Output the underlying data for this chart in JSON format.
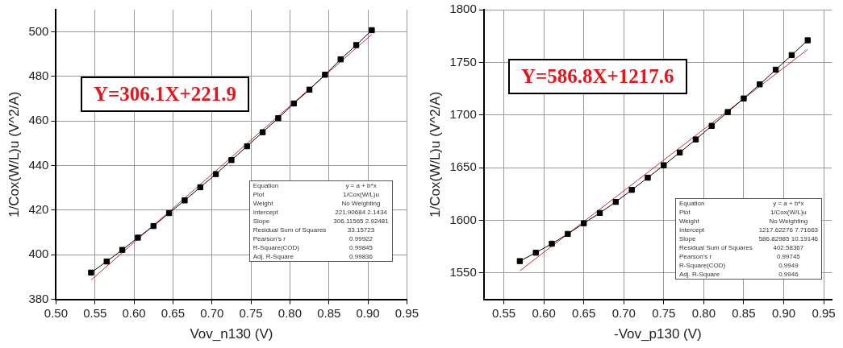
{
  "chart_data": [
    {
      "type": "line",
      "xlabel": "Vov_n130 (V)",
      "ylabel": "1/Cox(W/L)u (V^2/A)",
      "xlim": [
        0.5,
        0.95
      ],
      "ylim": [
        380,
        510
      ],
      "xticks": [
        {
          "value": 0.5,
          "label": "0.50"
        },
        {
          "value": 0.55,
          "label": "0.55"
        },
        {
          "value": 0.6,
          "label": "0.60"
        },
        {
          "value": 0.65,
          "label": "0.65"
        },
        {
          "value": 0.7,
          "label": "0.70"
        },
        {
          "value": 0.75,
          "label": "0.75"
        },
        {
          "value": 0.8,
          "label": "0.80"
        },
        {
          "value": 0.85,
          "label": "0.85"
        },
        {
          "value": 0.9,
          "label": "0.90"
        },
        {
          "value": 0.95,
          "label": "0.95"
        }
      ],
      "yticks": [
        380,
        400,
        420,
        440,
        460,
        480,
        500
      ],
      "grid": true,
      "legend": false,
      "series": [
        {
          "type": "line",
          "marker": "square",
          "color": "#000000",
          "x": [
            0.545,
            0.565,
            0.585,
            0.605,
            0.625,
            0.645,
            0.665,
            0.685,
            0.705,
            0.725,
            0.745,
            0.765,
            0.785,
            0.805,
            0.825,
            0.845,
            0.865,
            0.885,
            0.905
          ],
          "values": [
            392.0,
            397.0,
            402.2,
            407.7,
            412.9,
            418.7,
            424.4,
            430.3,
            436.2,
            442.5,
            448.7,
            455.0,
            461.3,
            467.9,
            474.1,
            480.8,
            487.7,
            494.1,
            500.8
          ]
        },
        {
          "type": "line",
          "marker": "none",
          "color": "#b83232",
          "x": [
            0.545,
            0.905
          ],
          "values": [
            388.7,
            498.9
          ]
        }
      ],
      "annotations": [
        "Y=306.1X+221.9",
        "Equation",
        "y = a + b*x",
        "Plot",
        "1/Cox(W/L)u",
        "Weight",
        "No Weighting",
        "Intercept",
        "221.90684 2.1434",
        "Slope",
        "306.11565 2.92481",
        "Residual Sum of Squares",
        "33.15723",
        "Pearson's r",
        "0.99922",
        "R-Square(COD)",
        "0.99845",
        "Adj. R-Square",
        "0.99836"
      ]
    },
    {
      "type": "line",
      "xlabel": "-Vov_p130 (V)",
      "ylabel": "1/Cox(W/L)u (V^2/A)",
      "xlim": [
        0.525,
        0.96
      ],
      "ylim": [
        1525,
        1800
      ],
      "xticks": [
        {
          "value": 0.55,
          "label": "0.55"
        },
        {
          "value": 0.6,
          "label": "0.60"
        },
        {
          "value": 0.65,
          "label": "0.65"
        },
        {
          "value": 0.7,
          "label": "0.70"
        },
        {
          "value": 0.75,
          "label": "0.75"
        },
        {
          "value": 0.8,
          "label": "0.80"
        },
        {
          "value": 0.85,
          "label": "0.85"
        },
        {
          "value": 0.9,
          "label": "0.90"
        },
        {
          "value": 0.95,
          "label": "0.95"
        }
      ],
      "yticks": [
        1550,
        1600,
        1650,
        1700,
        1750,
        1800
      ],
      "grid": true,
      "legend": false,
      "series": [
        {
          "type": "line",
          "marker": "square",
          "color": "#000000",
          "x": [
            0.57,
            0.59,
            0.61,
            0.63,
            0.65,
            0.67,
            0.69,
            0.71,
            0.73,
            0.75,
            0.77,
            0.79,
            0.81,
            0.83,
            0.85,
            0.87,
            0.89,
            0.91,
            0.93
          ],
          "values": [
            1561.3,
            1569.3,
            1577.8,
            1587.1,
            1597.2,
            1607.0,
            1617.5,
            1628.9,
            1640.5,
            1652.3,
            1664.4,
            1676.8,
            1689.7,
            1702.8,
            1715.7,
            1729.1,
            1743.0,
            1756.9,
            1770.9
          ]
        },
        {
          "type": "line",
          "marker": "none",
          "color": "#b83232",
          "x": [
            0.57,
            0.93
          ],
          "values": [
            1552.1,
            1762.3
          ]
        }
      ],
      "annotations": [
        "Y=586.8X+1217.6",
        "Equation",
        "y = a + b*x",
        "Plot",
        "1/Cox(W/L)u",
        "Weight",
        "No Weighting",
        "Intercept",
        "1217.62276 7.71663",
        "Slope",
        "586.82985 10.19146",
        "Residual Sum of Squares",
        "402.58367",
        "Pearson's r",
        "0.99745",
        "R-Square(COD)",
        "0.9949",
        "Adj. R-Square",
        "0.9946"
      ]
    }
  ]
}
